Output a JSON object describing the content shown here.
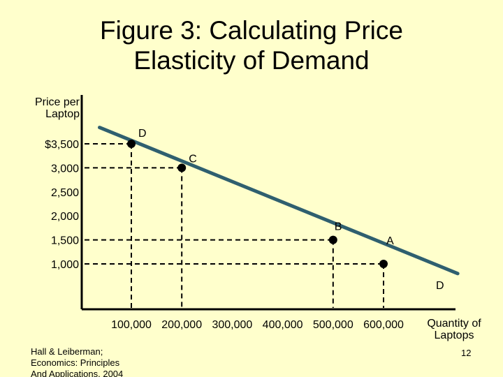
{
  "title": {
    "line1": "Figure 3:  Calculating Price",
    "line2": "Elasticity of Demand"
  },
  "chart_data": {
    "type": "line",
    "ylabel": [
      "Price per",
      "Laptop"
    ],
    "xlabel": [
      "Quantity of",
      "Laptops"
    ],
    "y_ticks": [
      {
        "value": 3500,
        "label": "$3,500"
      },
      {
        "value": 3000,
        "label": "3,000"
      },
      {
        "value": 2500,
        "label": "2,500"
      },
      {
        "value": 2000,
        "label": "2,000"
      },
      {
        "value": 1500,
        "label": "1,500"
      },
      {
        "value": 1000,
        "label": "1,000"
      }
    ],
    "x_ticks": [
      {
        "value": 100000,
        "label": "100,000"
      },
      {
        "value": 200000,
        "label": "200,000"
      },
      {
        "value": 300000,
        "label": "300,000"
      },
      {
        "value": 400000,
        "label": "400,000"
      },
      {
        "value": 500000,
        "label": "500,000"
      },
      {
        "value": 600000,
        "label": "600,000"
      }
    ],
    "xlim": [
      -100000,
      700000
    ],
    "ylim": [
      500,
      4000
    ],
    "series": [
      {
        "name": "D",
        "line": [
          [
            37000,
            3840
          ],
          [
            747000,
            800
          ]
        ],
        "color": "#2f5f6f"
      }
    ],
    "points": [
      {
        "label": "D",
        "x": 100000,
        "y": 3500
      },
      {
        "label": "C",
        "x": 200000,
        "y": 3000
      },
      {
        "label": "B",
        "x": 500000,
        "y": 1500
      },
      {
        "label": "A",
        "x": 600000,
        "y": 1000
      }
    ],
    "curve_end_label": "D",
    "grid": false
  },
  "footer": {
    "credit": [
      "Hall & Leiberman;",
      "Economics:  Principles",
      "And Applications, 2004"
    ],
    "page": "12"
  }
}
